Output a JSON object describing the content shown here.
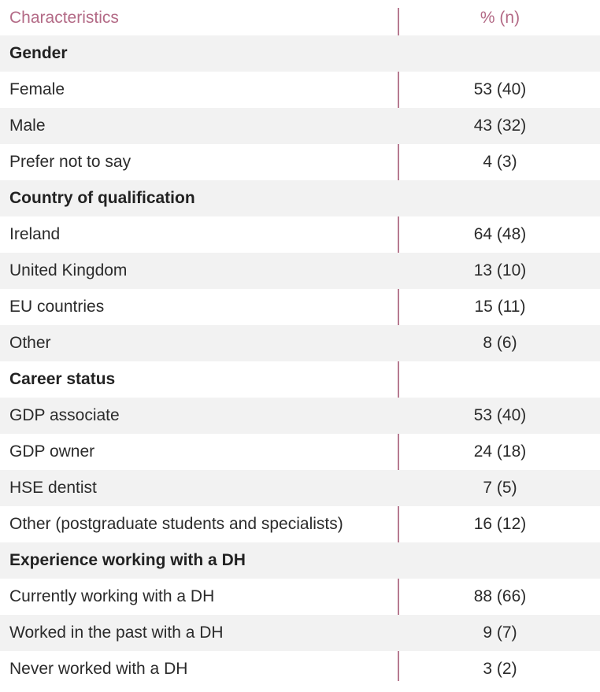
{
  "table": {
    "header": {
      "label": "Characteristics",
      "value": "% (n)"
    },
    "rows": [
      {
        "type": "section",
        "label": "Gender",
        "value": ""
      },
      {
        "type": "data",
        "label": "Female",
        "value": "53 (40)"
      },
      {
        "type": "data",
        "label": "Male",
        "value": "43 (32)"
      },
      {
        "type": "data",
        "label": "Prefer not to say",
        "value": "4 (3)"
      },
      {
        "type": "section",
        "label": "Country of qualification",
        "value": ""
      },
      {
        "type": "data",
        "label": "Ireland",
        "value": "64 (48)"
      },
      {
        "type": "data",
        "label": "United Kingdom",
        "value": "13 (10)"
      },
      {
        "type": "data",
        "label": "EU countries",
        "value": "15 (11)"
      },
      {
        "type": "data",
        "label": "Other",
        "value": "8 (6)"
      },
      {
        "type": "section",
        "label": "Career status",
        "value": ""
      },
      {
        "type": "data",
        "label": "GDP associate",
        "value": "53 (40)"
      },
      {
        "type": "data",
        "label": "GDP owner",
        "value": "24 (18)"
      },
      {
        "type": "data",
        "label": "HSE dentist",
        "value": "7 (5)"
      },
      {
        "type": "data",
        "label": "Other (postgraduate students and specialists)",
        "value": "16 (12)"
      },
      {
        "type": "section",
        "label": "Experience working with a DH",
        "value": ""
      },
      {
        "type": "data",
        "label": "Currently working with a DH",
        "value": "88 (66)"
      },
      {
        "type": "data",
        "label": "Worked in the past with a DH",
        "value": "9 (7)"
      },
      {
        "type": "data",
        "label": "Never worked with a DH",
        "value": "3 (2)"
      }
    ]
  },
  "colors": {
    "header_text": "#b36a86",
    "divider": "#b77a90",
    "alt_row": "#f2f2f2"
  }
}
